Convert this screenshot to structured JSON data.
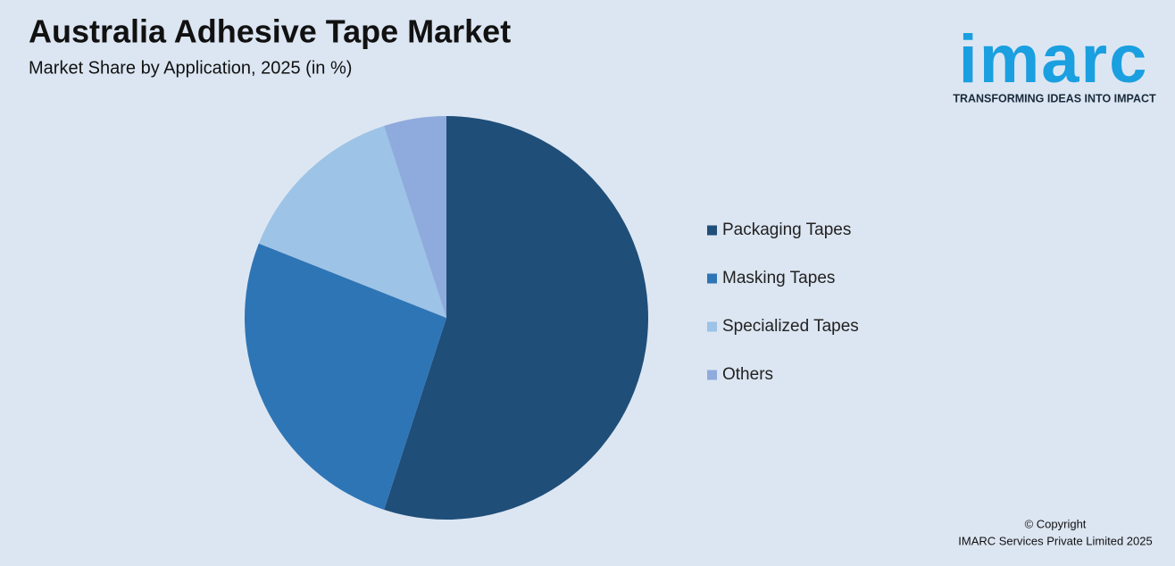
{
  "chart_data": {
    "type": "pie",
    "title": "Australia Adhesive Tape Market",
    "subtitle": "Market Share by Application, 2025 (in %)",
    "categories": [
      "Packaging Tapes",
      "Masking Tapes",
      "Specialized Tapes",
      "Others"
    ],
    "values": [
      55,
      26,
      14,
      5
    ],
    "colors": [
      "#1f4e79",
      "#2e75b6",
      "#9dc3e6",
      "#8faadc"
    ],
    "legend": "right"
  },
  "logo": {
    "name": "imarc",
    "tagline": "TRANSFORMING IDEAS INTO IMPACT"
  },
  "copyright": [
    "© Copyright",
    "IMARC Services Private Limited 2025"
  ]
}
